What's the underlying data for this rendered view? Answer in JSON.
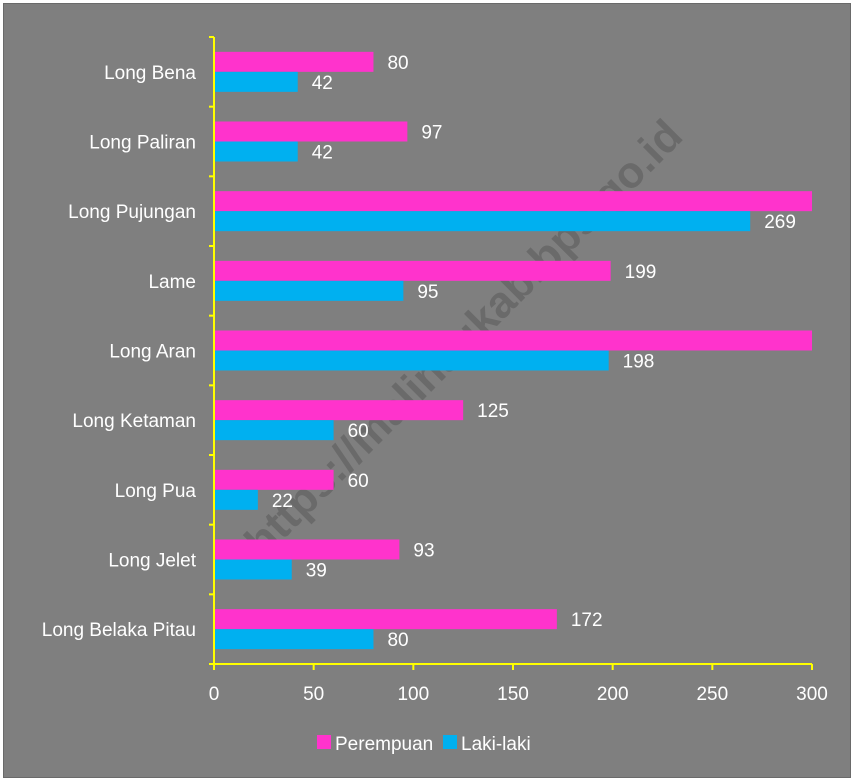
{
  "watermark": "https://malinaukab.bps.go.id",
  "colors": {
    "background": "#7f7f7f",
    "axis": "#ffff00",
    "text": "#ffffff"
  },
  "chart_data": {
    "type": "bar",
    "orientation": "horizontal",
    "categories": [
      "Long Bena",
      "Long Paliran",
      "Long Pujungan",
      "Lame",
      "Long Aran",
      "Long Ketaman",
      "Long Pua",
      "Long Jelet",
      "Long Belaka Pitau"
    ],
    "series": [
      {
        "name": "Perempuan",
        "color": "#ff33cc",
        "values": [
          80,
          97,
          301,
          199,
          301,
          125,
          60,
          93,
          172
        ],
        "labels": [
          "80",
          "97",
          "",
          "199",
          "",
          "125",
          "60",
          "93",
          "172"
        ]
      },
      {
        "name": "Laki-laki",
        "color": "#00b0f0",
        "values": [
          42,
          42,
          269,
          95,
          198,
          60,
          22,
          39,
          80
        ],
        "labels": [
          "42",
          "42",
          "269",
          "95",
          "198",
          "60",
          "22",
          "39",
          "80"
        ]
      }
    ],
    "xlim": [
      0,
      300
    ],
    "xticks": [
      "0",
      "50",
      "100",
      "150",
      "200",
      "250",
      "300"
    ],
    "title": "",
    "xlabel": "",
    "ylabel": "",
    "grid": false,
    "legend_position": "bottom"
  }
}
